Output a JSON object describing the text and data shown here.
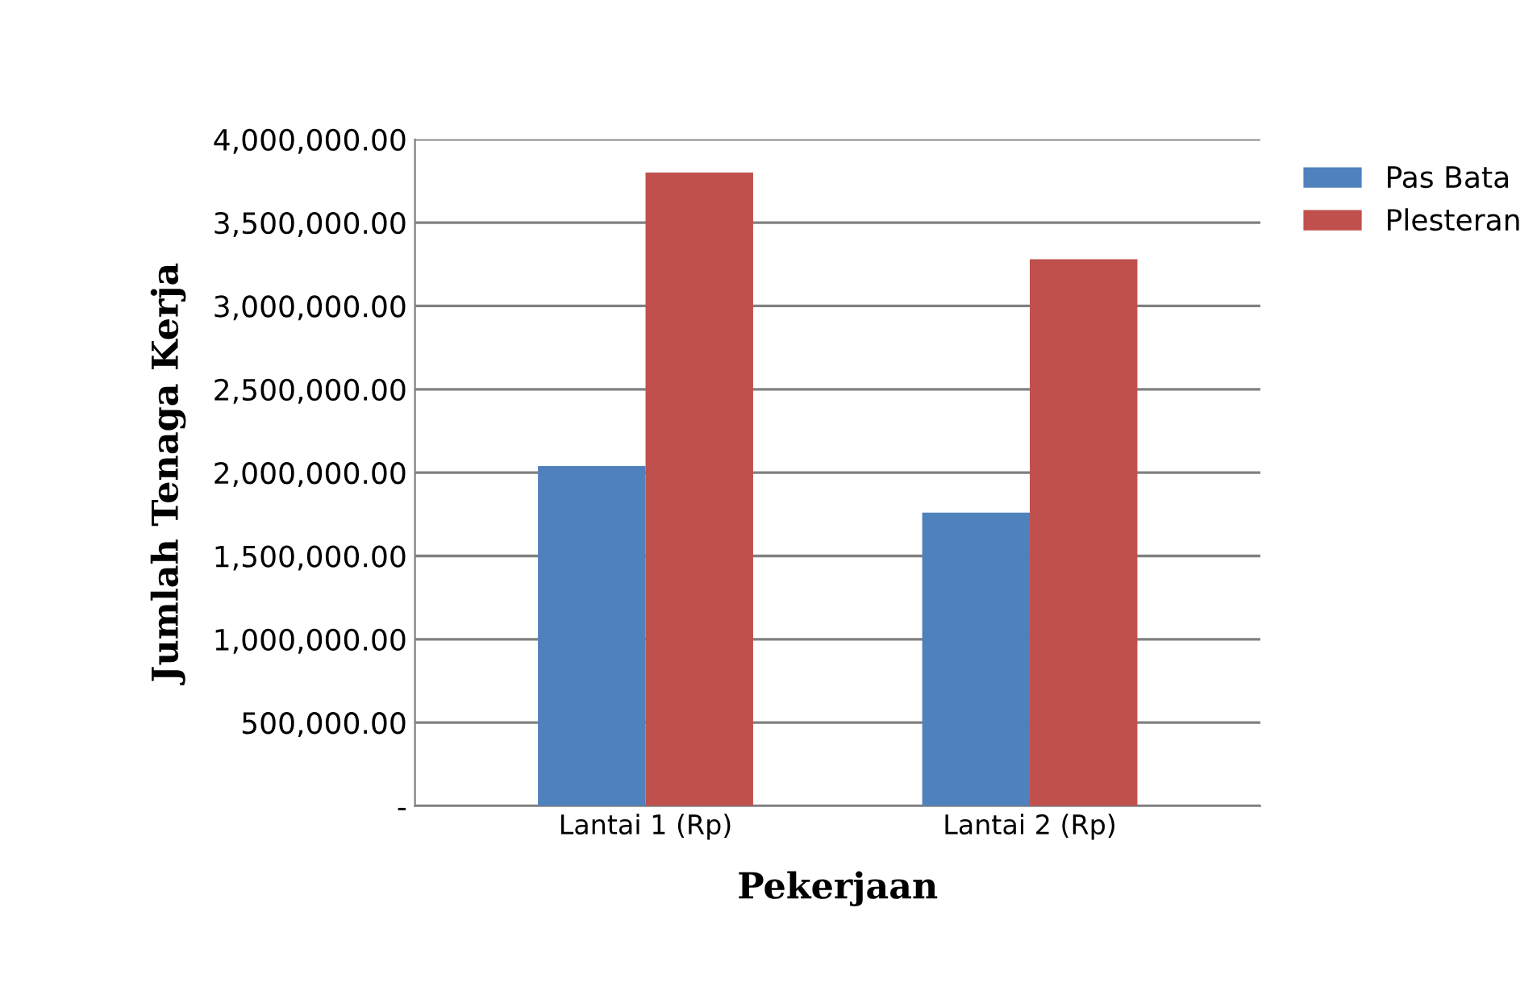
{
  "chart_data": {
    "type": "bar",
    "xlabel": "Pekerjaan",
    "ylabel": "Jumlah Tenaga Kerja",
    "categories": [
      "Lantai 1 (Rp)",
      "Lantai 2 (Rp)"
    ],
    "series": [
      {
        "name": "Pas Bata",
        "color": "#4f81bd",
        "values": [
          2040000,
          1760000
        ]
      },
      {
        "name": "Plesteran",
        "color": "#c0504d",
        "values": [
          3800000,
          3280000
        ]
      }
    ],
    "ylim": [
      0,
      4000000
    ],
    "yticks": [
      {
        "value": 0,
        "label": "-"
      },
      {
        "value": 500000,
        "label": "500,000.00"
      },
      {
        "value": 1000000,
        "label": "1,000,000.00"
      },
      {
        "value": 1500000,
        "label": "1,500,000.00"
      },
      {
        "value": 2000000,
        "label": "2,000,000.00"
      },
      {
        "value": 2500000,
        "label": "2,500,000.00"
      },
      {
        "value": 3000000,
        "label": "3,000,000.00"
      },
      {
        "value": 3500000,
        "label": "3,500,000.00"
      },
      {
        "value": 4000000,
        "label": "4,000,000.00"
      }
    ],
    "grid": "y",
    "legend": "right"
  }
}
